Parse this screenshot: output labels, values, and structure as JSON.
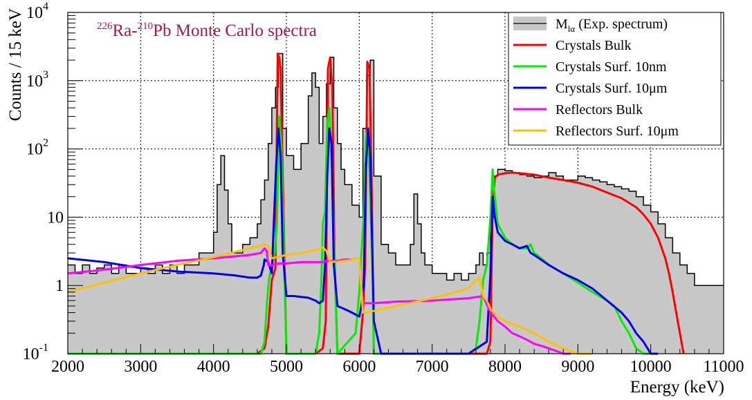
{
  "chart_data": {
    "type": "line",
    "title": {
      "sup1": "226",
      "elem1": "Ra-",
      "sup2": "210",
      "elem2": "Pb Monte Carlo spectra"
    },
    "title_color": "#a8174e",
    "xlabel": "Energy (keV)",
    "ylabel": "Counts / 15 keV",
    "xlim": [
      2000,
      11000
    ],
    "ylim": [
      0.1,
      10000
    ],
    "yscale": "log",
    "grid": true,
    "legend_position": "top-right",
    "x_ticks": [
      "2000",
      "3000",
      "4000",
      "5000",
      "6000",
      "7000",
      "8000",
      "9000",
      "10000",
      "11000"
    ],
    "y_ticks": [
      {
        "v": 0.1,
        "base": "10",
        "exp": "-1"
      },
      {
        "v": 1,
        "label": "1"
      },
      {
        "v": 10,
        "label": "10"
      },
      {
        "v": 100,
        "base": "10",
        "exp": "2"
      },
      {
        "v": 1000,
        "base": "10",
        "exp": "3"
      },
      {
        "v": 10000,
        "base": "10",
        "exp": "4"
      }
    ],
    "legend": [
      {
        "id": "exp",
        "main": "M",
        "sub": "lα",
        "rest": " (Exp. spectrum)",
        "color": "#000000",
        "fill": "#c8c8c8"
      },
      {
        "id": "cb",
        "label": "Crystals Bulk",
        "color": "#ff0000"
      },
      {
        "id": "cs10nm",
        "label": "Crystals Surf. 10nm",
        "color": "#00ee00"
      },
      {
        "id": "cs10um",
        "label": "Crystals Surf. 10μm",
        "color": "#0000ee"
      },
      {
        "id": "rb",
        "label": "Reflectors Bulk",
        "color": "#ff00ff"
      },
      {
        "id": "rs10um",
        "label": "Reflectors Surf. 10μm",
        "color": "#ffc000"
      }
    ],
    "series": [
      {
        "id": "exp",
        "color": "#000000",
        "fill": "#c8c8c8",
        "x": [
          2000,
          2100,
          2200,
          2300,
          2400,
          2500,
          2600,
          2700,
          2800,
          2900,
          3000,
          3100,
          3200,
          3300,
          3400,
          3500,
          3600,
          3700,
          3800,
          3900,
          4000,
          4050,
          4100,
          4150,
          4200,
          4250,
          4300,
          4400,
          4500,
          4600,
          4650,
          4700,
          4750,
          4800,
          4850,
          4890,
          4950,
          5000,
          5100,
          5200,
          5300,
          5350,
          5400,
          5450,
          5500,
          5550,
          5600,
          5650,
          5700,
          5750,
          5800,
          5900,
          6000,
          6050,
          6100,
          6150,
          6200,
          6300,
          6400,
          6500,
          6600,
          6700,
          6750,
          6800,
          6850,
          6900,
          7000,
          7100,
          7200,
          7300,
          7400,
          7500,
          7600,
          7650,
          7700,
          7750,
          7800,
          7850,
          7900,
          8000,
          8100,
          8200,
          8300,
          8400,
          8500,
          8600,
          8700,
          8800,
          8900,
          9000,
          9100,
          9200,
          9300,
          9400,
          9500,
          9600,
          9700,
          9800,
          9900,
          10000,
          10100,
          10200,
          10300,
          10400,
          10500,
          10600,
          10700,
          10800,
          10900,
          11000
        ],
        "y": [
          2,
          1.5,
          2,
          1.5,
          1.8,
          2,
          1.5,
          2,
          1.5,
          1.5,
          1.8,
          1.5,
          2,
          1.5,
          2,
          1.5,
          2,
          2,
          3,
          3,
          6,
          30,
          80,
          25,
          8,
          3,
          3,
          4,
          5,
          8,
          18,
          35,
          120,
          400,
          800,
          2500,
          200,
          80,
          50,
          120,
          600,
          1300,
          800,
          120,
          300,
          900,
          2200,
          400,
          120,
          50,
          30,
          15,
          10,
          200,
          1200,
          2000,
          40,
          4,
          3,
          2,
          2,
          4,
          22,
          8,
          3,
          2,
          1.5,
          1.5,
          1.2,
          1.5,
          1.2,
          1.5,
          2,
          3,
          2,
          3,
          10,
          40,
          50,
          48,
          45,
          42,
          40,
          38,
          40,
          45,
          40,
          35,
          35,
          40,
          38,
          35,
          33,
          30,
          28,
          26,
          24,
          20,
          15,
          12,
          8,
          5,
          3,
          2,
          1.5,
          1,
          1,
          1,
          1,
          1
        ]
      },
      {
        "id": "cb",
        "color": "#ff0000",
        "x": [
          2000,
          4500,
          4600,
          4700,
          4750,
          4800,
          4850,
          4880,
          4900,
          4920,
          4950,
          5000,
          5400,
          5500,
          5540,
          5570,
          5600,
          5630,
          5660,
          5700,
          6000,
          6050,
          6080,
          6110,
          6140,
          6170,
          6200,
          7000,
          7500,
          7750,
          7800,
          7830,
          7860,
          7900,
          8000,
          8100,
          8200,
          8400,
          8600,
          8800,
          9000,
          9200,
          9400,
          9600,
          9800,
          9900,
          10000,
          10100,
          10200,
          10250,
          10300,
          10350,
          10400,
          10450
        ],
        "y": [
          0.1,
          0.1,
          0.1,
          0.12,
          0.25,
          1.2,
          1.8,
          2500,
          2200,
          1500,
          40,
          0.1,
          0.1,
          0.12,
          0.3,
          1500,
          2200,
          800,
          3,
          0.1,
          0.1,
          0.4,
          2,
          1900,
          1500,
          30,
          0.1,
          0.1,
          0.1,
          0.1,
          0.15,
          15,
          38,
          42,
          44,
          45,
          44,
          42,
          38,
          35,
          32,
          28,
          23,
          19,
          14,
          11,
          8,
          5,
          2.5,
          1.5,
          0.8,
          0.4,
          0.2,
          0.1
        ]
      },
      {
        "id": "cs10nm",
        "color": "#00ee00",
        "x": [
          2000,
          4600,
          4650,
          4700,
          4730,
          4760,
          4800,
          4840,
          4870,
          4900,
          4930,
          4960,
          5000,
          5400,
          5450,
          5480,
          5500,
          5530,
          5560,
          5590,
          5620,
          5650,
          5700,
          5950,
          6000,
          6030,
          6060,
          6090,
          6120,
          6150,
          6180,
          6200,
          7500,
          7600,
          7650,
          7700,
          7750,
          7800,
          7830,
          7850,
          7900,
          8000,
          8100,
          8200,
          8300,
          8350,
          8400,
          8500,
          8600,
          8800,
          9000,
          9200,
          9400,
          9500,
          9600,
          9700,
          9800,
          9900,
          10000
        ],
        "y": [
          0.1,
          0.1,
          0.1,
          0.15,
          0.5,
          1.2,
          2,
          3,
          8,
          300,
          120,
          5,
          0.1,
          0.1,
          0.2,
          1.2,
          8,
          12,
          230,
          400,
          60,
          5,
          0.1,
          0.2,
          0.8,
          3,
          10,
          150,
          200,
          20,
          2,
          0.1,
          0.1,
          0.12,
          0.3,
          1.2,
          2,
          10,
          50,
          25,
          8,
          5,
          4,
          3.5,
          3.5,
          4,
          3,
          2.5,
          2,
          1.5,
          1.1,
          0.8,
          0.6,
          0.5,
          0.3,
          0.2,
          0.12,
          0.1,
          0.1
        ]
      },
      {
        "id": "cs10um",
        "color": "#0000ee",
        "x": [
          2000,
          2500,
          3000,
          3500,
          4000,
          4300,
          4500,
          4600,
          4650,
          4690,
          4700,
          4750,
          4800,
          4830,
          4860,
          4890,
          4920,
          4950,
          5000,
          5100,
          5200,
          5300,
          5400,
          5450,
          5500,
          5530,
          5560,
          5590,
          5620,
          5650,
          5700,
          5800,
          5900,
          6000,
          6030,
          6060,
          6090,
          6120,
          6150,
          6200,
          6300,
          6500,
          7000,
          7500,
          7750,
          7800,
          7830,
          7860,
          7900,
          8000,
          8100,
          8200,
          8300,
          8350,
          8400,
          8600,
          8800,
          9000,
          9200,
          9400,
          9600,
          9700,
          9800,
          9900,
          10000,
          10100
        ],
        "y": [
          2.5,
          2.2,
          1.8,
          1.6,
          1.5,
          1.4,
          1.3,
          1.3,
          1.4,
          2,
          2.4,
          2.2,
          1.5,
          10,
          60,
          200,
          80,
          3,
          0.7,
          0.7,
          0.68,
          0.66,
          0.6,
          0.55,
          0.6,
          2,
          40,
          200,
          120,
          2,
          0.5,
          0.45,
          0.4,
          0.35,
          0.5,
          1,
          50,
          200,
          80,
          0.3,
          0.1,
          0.1,
          0.1,
          0.1,
          0.15,
          1.5,
          20,
          10,
          6,
          4.5,
          4,
          3.5,
          3.8,
          3,
          2.8,
          2,
          1.5,
          1.2,
          0.9,
          0.6,
          0.4,
          0.3,
          0.2,
          0.15,
          0.1,
          0.1
        ]
      },
      {
        "id": "rb",
        "color": "#ff00ff",
        "x": [
          2000,
          2500,
          3000,
          3500,
          4000,
          4500,
          4650,
          4700,
          4730,
          4750,
          4800,
          4900,
          5000,
          5200,
          5400,
          5500,
          5550,
          5600,
          5700,
          5800,
          5900,
          6000,
          6050,
          6100,
          6150,
          6200,
          6300,
          6500,
          7000,
          7500,
          7700,
          7800,
          7850,
          7900,
          8000,
          8100,
          8200,
          8300,
          8400,
          8500,
          8600,
          8700,
          8800,
          8900
        ],
        "y": [
          1.5,
          1.7,
          2,
          2.3,
          2.5,
          2.8,
          3,
          3.5,
          3.2,
          2,
          2,
          2.1,
          2.1,
          2.2,
          2.2,
          2.2,
          2.3,
          2.3,
          2.3,
          2.4,
          2.4,
          2.5,
          0.55,
          0.55,
          0.55,
          0.55,
          0.56,
          0.58,
          0.6,
          0.65,
          0.7,
          0.4,
          0.35,
          0.3,
          0.25,
          0.2,
          0.18,
          0.16,
          0.14,
          0.13,
          0.12,
          0.11,
          0.1,
          0.1
        ]
      },
      {
        "id": "rs10um",
        "color": "#ffc000",
        "x": [
          2000,
          2500,
          3000,
          3500,
          4000,
          4500,
          4700,
          4750,
          4800,
          5000,
          5200,
          5400,
          5500,
          5550,
          5600,
          5800,
          6000,
          6050,
          6100,
          6500,
          7000,
          7500,
          7600,
          7650,
          7700,
          7750,
          7800,
          7900,
          8000,
          8200,
          8400,
          8600,
          8800,
          9000,
          9200
        ],
        "y": [
          0.8,
          1.1,
          1.5,
          2,
          2.6,
          3.5,
          4,
          3.8,
          2.5,
          2.8,
          3,
          3.3,
          3.6,
          3.2,
          2.2,
          2.3,
          2.5,
          0.4,
          0.4,
          0.5,
          0.65,
          0.9,
          1.2,
          1.3,
          0.7,
          0.6,
          0.45,
          0.35,
          0.3,
          0.25,
          0.2,
          0.15,
          0.12,
          0.1,
          0.1
        ]
      }
    ]
  }
}
